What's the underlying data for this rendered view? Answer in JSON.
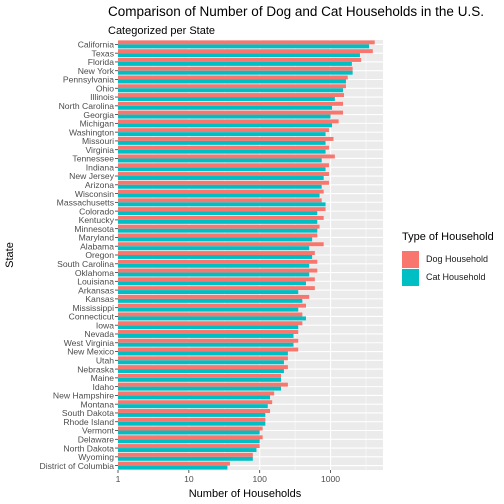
{
  "chart_data": {
    "type": "bar",
    "orientation": "horizontal",
    "title": "Comparison of Number of Dog and Cat Households in the U.S.",
    "subtitle": "Categorized per State",
    "xlabel": "Number of Households",
    "ylabel": "State",
    "xscale": "log10",
    "xlim": [
      1,
      5500
    ],
    "xticks": [
      "1",
      "10",
      "100",
      "1000"
    ],
    "grid": true,
    "legend": {
      "title": "Type of Household",
      "placement": "right",
      "entries": [
        "Dog Household",
        "Cat Household"
      ]
    },
    "colors": {
      "dog": "#F8766D",
      "cat": "#00BFC4",
      "panel": "#EBEBEB",
      "grid": "#FFFFFF"
    },
    "categories": [
      "California",
      "Texas",
      "Florida",
      "New York",
      "Pennsylvania",
      "Ohio",
      "Illinois",
      "North Carolina",
      "Georgia",
      "Michigan",
      "Washington",
      "Missouri",
      "Virginia",
      "Tennessee",
      "Indiana",
      "New Jersey",
      "Arizona",
      "Wisconsin",
      "Massachusetts",
      "Colorado",
      "Kentucky",
      "Minnesota",
      "Maryland",
      "Alabama",
      "Oregon",
      "South Carolina",
      "Oklahoma",
      "Louisiana",
      "Arkansas",
      "Kansas",
      "Mississippi",
      "Connecticut",
      "Iowa",
      "Nevada",
      "West Virginia",
      "New Mexico",
      "Utah",
      "Nebraska",
      "Maine",
      "Idaho",
      "New Hampshire",
      "Montana",
      "South Dakota",
      "Rhode Island",
      "Vermont",
      "Delaware",
      "North Dakota",
      "Wyoming",
      "District of Columbia"
    ],
    "series": [
      {
        "name": "Dog Household",
        "values": [
          4200,
          3950,
          2700,
          2050,
          1750,
          1650,
          1550,
          1500,
          1500,
          1300,
          950,
          1100,
          950,
          1150,
          950,
          950,
          950,
          800,
          750,
          850,
          800,
          700,
          650,
          800,
          600,
          650,
          650,
          600,
          600,
          500,
          450,
          400,
          400,
          350,
          350,
          350,
          250,
          250,
          200,
          250,
          160,
          150,
          140,
          120,
          110,
          110,
          100,
          80,
          38
        ]
      },
      {
        "name": "Cat Household",
        "values": [
          3500,
          2600,
          2000,
          2050,
          1650,
          1500,
          1150,
          1050,
          1000,
          1050,
          850,
          850,
          850,
          750,
          850,
          800,
          750,
          700,
          850,
          650,
          650,
          650,
          550,
          500,
          550,
          500,
          500,
          450,
          350,
          400,
          350,
          450,
          350,
          300,
          300,
          250,
          220,
          220,
          200,
          200,
          140,
          130,
          120,
          120,
          100,
          100,
          90,
          80,
          35
        ]
      }
    ]
  }
}
